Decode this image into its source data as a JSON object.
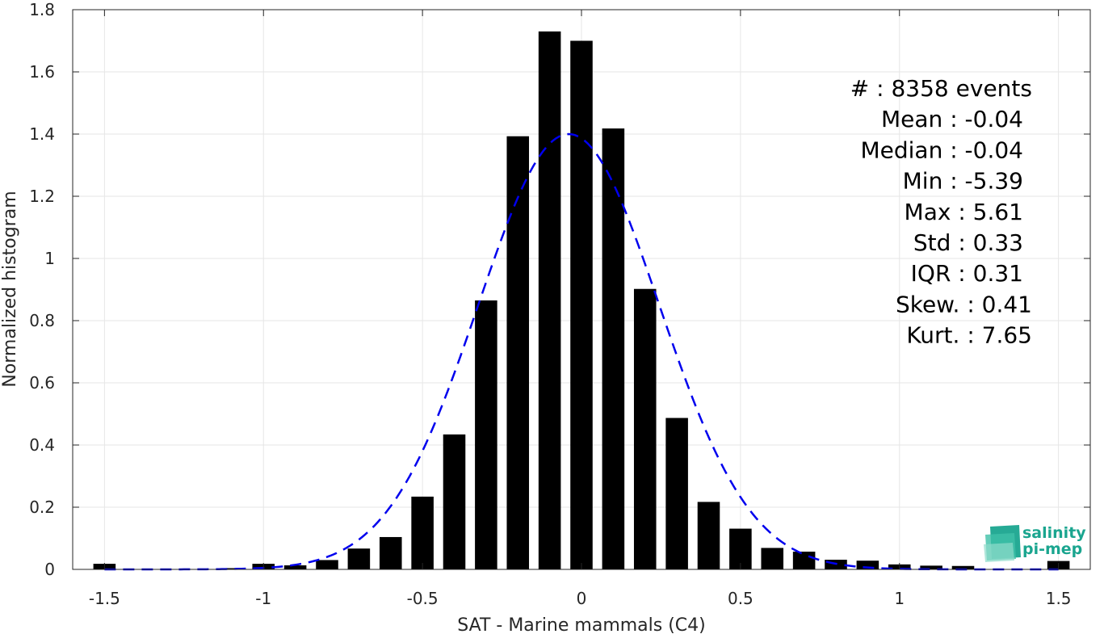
{
  "chart_data": {
    "type": "bar",
    "xlabel": "SAT - Marine mammals (C4)",
    "ylabel": "Normalized histogram",
    "xlim": [
      -1.6,
      1.6
    ],
    "ylim": [
      0,
      1.8
    ],
    "grid": true,
    "xticks": [
      -1.5,
      -1,
      -0.5,
      0,
      0.5,
      1,
      1.5
    ],
    "xtick_labels": [
      "-1.5",
      "-1",
      "-0.5",
      "0",
      "0.5",
      "1",
      "1.5"
    ],
    "yticks": [
      0,
      0.2,
      0.4,
      0.6,
      0.8,
      1,
      1.2,
      1.4,
      1.6,
      1.8
    ],
    "ytick_labels": [
      "0",
      "0.2",
      "0.4",
      "0.6",
      "0.8",
      "1",
      "1.2",
      "1.4",
      "1.6",
      "1.8"
    ],
    "bar_width": 0.07,
    "bar_color": "#000000",
    "bars": [
      {
        "x": -1.5,
        "y": 0.018
      },
      {
        "x": -1.1,
        "y": 0.004
      },
      {
        "x": -1.0,
        "y": 0.018
      },
      {
        "x": -0.9,
        "y": 0.013
      },
      {
        "x": -0.8,
        "y": 0.03
      },
      {
        "x": -0.7,
        "y": 0.067
      },
      {
        "x": -0.6,
        "y": 0.104
      },
      {
        "x": -0.5,
        "y": 0.234
      },
      {
        "x": -0.4,
        "y": 0.434
      },
      {
        "x": -0.3,
        "y": 0.865
      },
      {
        "x": -0.2,
        "y": 1.393
      },
      {
        "x": -0.1,
        "y": 1.73
      },
      {
        "x": 0.0,
        "y": 1.7
      },
      {
        "x": 0.1,
        "y": 1.418
      },
      {
        "x": 0.2,
        "y": 0.902
      },
      {
        "x": 0.3,
        "y": 0.487
      },
      {
        "x": 0.4,
        "y": 0.217
      },
      {
        "x": 0.5,
        "y": 0.131
      },
      {
        "x": 0.6,
        "y": 0.069
      },
      {
        "x": 0.7,
        "y": 0.057
      },
      {
        "x": 0.8,
        "y": 0.031
      },
      {
        "x": 0.9,
        "y": 0.028
      },
      {
        "x": 1.0,
        "y": 0.016
      },
      {
        "x": 1.1,
        "y": 0.012
      },
      {
        "x": 1.2,
        "y": 0.011
      },
      {
        "x": 1.5,
        "y": 0.027
      }
    ],
    "fit_curve": {
      "style": "dashed",
      "color": "#0000ee",
      "mean": -0.04,
      "std": 0.285,
      "peak": 1.4,
      "x_range": [
        -1.5,
        1.5
      ]
    },
    "stats": [
      {
        "label": "#  : 8358 events"
      },
      {
        "label": "Mean : -0.04"
      },
      {
        "label": "Median : -0.04"
      },
      {
        "label": "Min : -5.39"
      },
      {
        "label": "Max : 5.61"
      },
      {
        "label": "Std : 0.33"
      },
      {
        "label": "IQR : 0.31"
      },
      {
        "label": "Skew. : 0.41"
      },
      {
        "label": "Kurt. : 7.65"
      }
    ]
  },
  "logo": {
    "line1": "salinity",
    "line2": "pi-mep",
    "color": "#1aa58f"
  }
}
